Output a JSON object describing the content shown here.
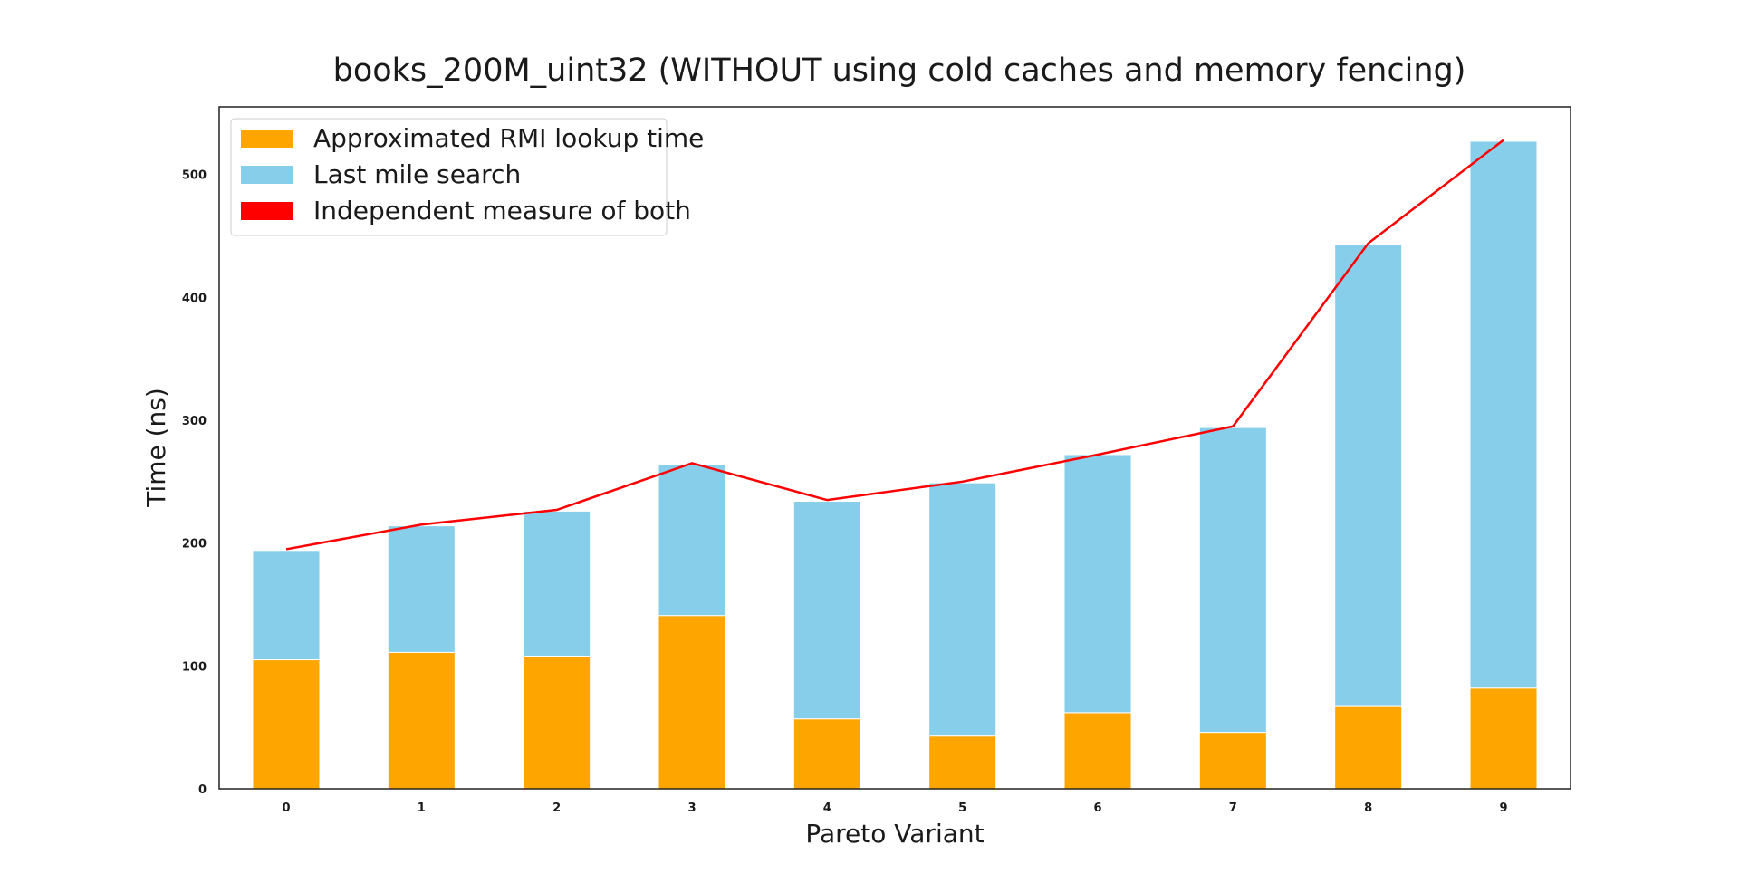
{
  "chart_data": {
    "type": "bar",
    "stacked": true,
    "title": "books_200M_uint32 (WITHOUT using cold caches and memory fencing)",
    "xlabel": "Pareto Variant",
    "ylabel": "Time (ns)",
    "categories": [
      "0",
      "1",
      "2",
      "3",
      "4",
      "5",
      "6",
      "7",
      "8",
      "9"
    ],
    "ylim": [
      0,
      555
    ],
    "yticks": [
      0,
      100,
      200,
      300,
      400,
      500
    ],
    "grid": false,
    "legend_position": "top-left",
    "series": [
      {
        "name": "Approximated RMI lookup time",
        "kind": "bar",
        "color": "#FFA500",
        "values": [
          105,
          111,
          108,
          141,
          57,
          43,
          62,
          46,
          67,
          82
        ]
      },
      {
        "name": "Last mile search",
        "kind": "bar",
        "color": "#87CEEB",
        "values": [
          89,
          103,
          118,
          123,
          177,
          206,
          210,
          248,
          376,
          445
        ]
      },
      {
        "name": "Independent measure of both",
        "kind": "line",
        "color": "#FF0000",
        "values": [
          195,
          215,
          227,
          265,
          235,
          250,
          272,
          295,
          444,
          528
        ]
      }
    ]
  }
}
